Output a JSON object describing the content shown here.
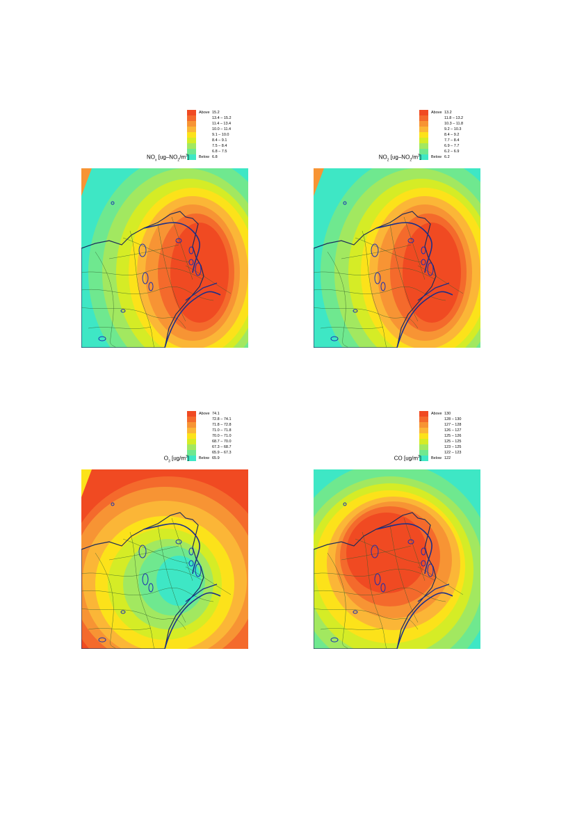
{
  "panels": [
    {
      "id": "nox",
      "quantity": "NOx [ug-NO2/m3]",
      "quantity_parts": {
        "a": "NO",
        "a_sub": "x",
        "b": " [ug–NO",
        "b_sub": "2",
        "c": "/m",
        "c_sup": "3",
        "d": "]"
      },
      "legend": [
        {
          "label": "Above",
          "range": "15.2",
          "color": "#f04a22"
        },
        {
          "label": "",
          "range": "13.4 – 15.2",
          "color": "#f46a2c"
        },
        {
          "label": "",
          "range": "11.4 – 13.4",
          "color": "#f79434"
        },
        {
          "label": "",
          "range": "10.0 – 11.4",
          "color": "#fbb637"
        },
        {
          "label": "",
          "range": "9.1 – 10.0",
          "color": "#fce21a"
        },
        {
          "label": "",
          "range": "8.4 –   9.1",
          "color": "#d5ec26"
        },
        {
          "label": "",
          "range": "7.5 –   8.4",
          "color": "#a2e860"
        },
        {
          "label": "",
          "range": "6.8 –   7.5",
          "color": "#6fe88f"
        },
        {
          "label": "Below",
          "range": "6.8",
          "color": "#3ee7c5"
        }
      ]
    },
    {
      "id": "no2",
      "quantity": "NO2 [ug-NO2/m3]",
      "quantity_parts": {
        "a": "NO",
        "a_sub": "2",
        "b": " [ug–NO",
        "b_sub": "2",
        "c": "/m",
        "c_sup": "3",
        "d": "]"
      },
      "legend": [
        {
          "label": "Above",
          "range": "13.2",
          "color": "#f04a22"
        },
        {
          "label": "",
          "range": "11.8 – 13.2",
          "color": "#f46a2c"
        },
        {
          "label": "",
          "range": "10.3 – 11.8",
          "color": "#f79434"
        },
        {
          "label": "",
          "range": "9.2 – 10.3",
          "color": "#fbb637"
        },
        {
          "label": "",
          "range": "8.4 –   9.2",
          "color": "#fce21a"
        },
        {
          "label": "",
          "range": "7.7 –   8.4",
          "color": "#d5ec26"
        },
        {
          "label": "",
          "range": "6.9 –   7.7",
          "color": "#a2e860"
        },
        {
          "label": "",
          "range": "6.2 –   6.9",
          "color": "#6fe88f"
        },
        {
          "label": "Below",
          "range": "6.2",
          "color": "#3ee7c5"
        }
      ]
    },
    {
      "id": "o3",
      "quantity": "O3 [ug/m3]",
      "quantity_parts": {
        "a": "O",
        "a_sub": "3",
        "b": " [ug/m",
        "b_sub": "",
        "c": "",
        "c_sup": "3",
        "d": "]"
      },
      "legend": [
        {
          "label": "Above",
          "range": "74.1",
          "color": "#f04a22"
        },
        {
          "label": "",
          "range": "72.8 – 74.1",
          "color": "#f46a2c"
        },
        {
          "label": "",
          "range": "71.8 – 72.8",
          "color": "#f79434"
        },
        {
          "label": "",
          "range": "71.0 – 71.8",
          "color": "#fbb637"
        },
        {
          "label": "",
          "range": "70.0 – 71.0",
          "color": "#fce21a"
        },
        {
          "label": "",
          "range": "68.7 – 70.0",
          "color": "#d5ec26"
        },
        {
          "label": "",
          "range": "67.3 – 68.7",
          "color": "#a2e860"
        },
        {
          "label": "",
          "range": "65.9 – 67.3",
          "color": "#6fe88f"
        },
        {
          "label": "Below",
          "range": "65.9",
          "color": "#3ee7c5"
        }
      ]
    },
    {
      "id": "co",
      "quantity": "CO [ug/m3]",
      "quantity_parts": {
        "a": "CO",
        "a_sub": "",
        "b": " [ug/m",
        "b_sub": "",
        "c": "",
        "c_sup": "3",
        "d": "]"
      },
      "legend": [
        {
          "label": "Above",
          "range": "130",
          "color": "#f04a22"
        },
        {
          "label": "",
          "range": "128 – 130",
          "color": "#f46a2c"
        },
        {
          "label": "",
          "range": "127 – 128",
          "color": "#f79434"
        },
        {
          "label": "",
          "range": "126 – 127",
          "color": "#fbb637"
        },
        {
          "label": "",
          "range": "125 – 126",
          "color": "#fce21a"
        },
        {
          "label": "",
          "range": "125 – 125",
          "color": "#d5ec26"
        },
        {
          "label": "",
          "range": "123 – 125",
          "color": "#a2e860"
        },
        {
          "label": "",
          "range": "122 – 123",
          "color": "#6fe88f"
        },
        {
          "label": "Below",
          "range": "122",
          "color": "#3ee7c5"
        }
      ]
    }
  ]
}
